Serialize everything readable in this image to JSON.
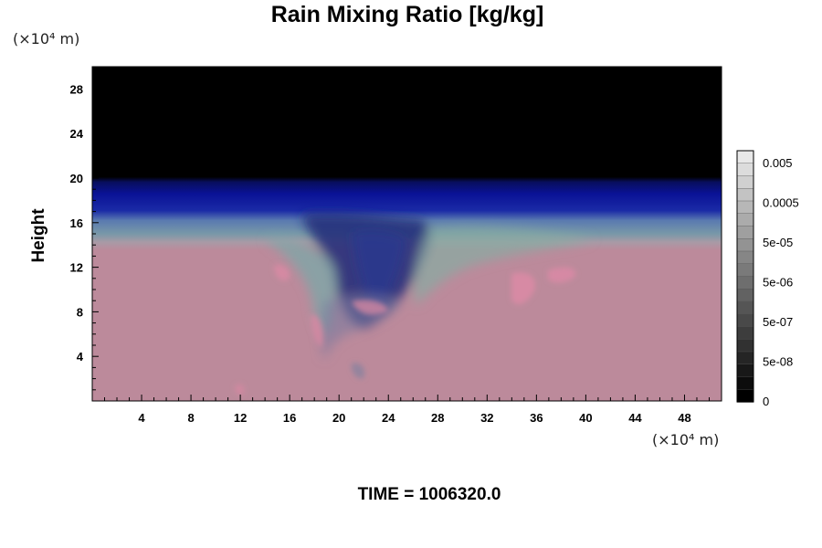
{
  "chart_data": {
    "type": "heatmap",
    "title": "Rain Mixing Ratio [kg/kg]",
    "ylabel": "Height",
    "xlabel": "",
    "x_unit_label": "(×10⁴ m)",
    "y_unit_label": "(×10⁴ m)",
    "xlim": [
      0,
      51
    ],
    "ylim": [
      0,
      30
    ],
    "x_ticks": [
      "4",
      "8",
      "12",
      "16",
      "20",
      "24",
      "28",
      "32",
      "36",
      "40",
      "44",
      "48"
    ],
    "y_ticks": [
      "4",
      "8",
      "12",
      "16",
      "20",
      "24",
      "28"
    ],
    "colorbar": {
      "labels": [
        "0.005",
        "0.0005",
        "5e-05",
        "5e-06",
        "5e-07",
        "5e-08",
        "0"
      ],
      "label_values": [
        0.005,
        0.0005,
        5e-05,
        5e-06,
        5e-07,
        5e-08,
        0
      ]
    },
    "field_layers": [
      {
        "name": "zero",
        "y_range": [
          20,
          30
        ],
        "color": "#000000"
      },
      {
        "name": "deep-blue",
        "y_range": [
          16.5,
          20
        ],
        "color": "#0a1290"
      },
      {
        "name": "blue-grey",
        "y_range": [
          14,
          16.5
        ],
        "color": "#6a8ea8"
      },
      {
        "name": "pink",
        "y_range": [
          0,
          14
        ],
        "color": "#bc8a9b"
      }
    ],
    "plume_center_x": 24,
    "footer": "TIME = 1006320.0"
  },
  "colors": {
    "black": "#000000",
    "deep_blue": "#0a1290",
    "mid_blue": "#2a3aa0",
    "teal": "#6aa0a8",
    "pink": "#bc8a9b",
    "bright_pink": "#de8aa4"
  }
}
